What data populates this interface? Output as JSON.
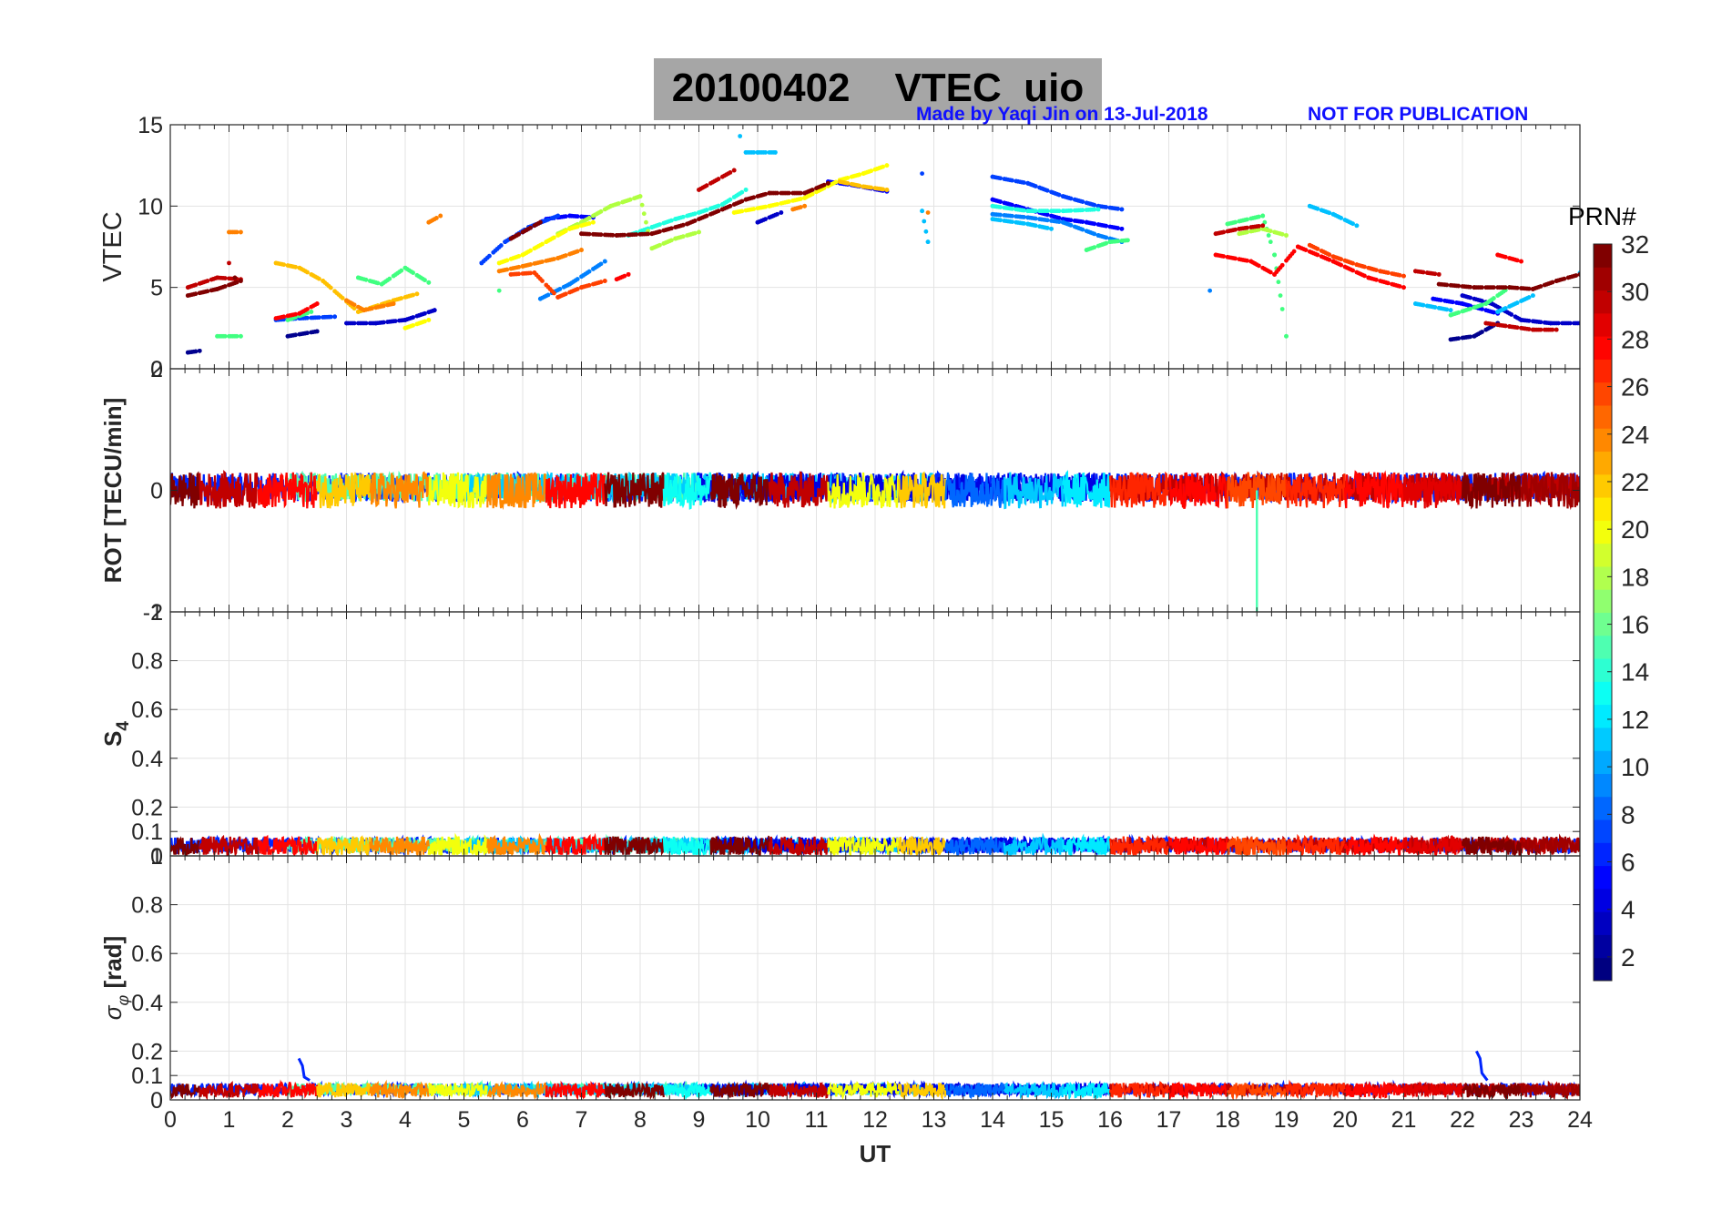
{
  "title": {
    "date": "20100402",
    "quantity": "VTEC",
    "station": "uio"
  },
  "credit": {
    "made_by": "Made by Yaqi Jin on 13-Jul-2018",
    "notice": "NOT FOR PUBLICATION"
  },
  "colorbar": {
    "title": "PRN#",
    "range": [
      1,
      32
    ],
    "ticks": [
      2,
      4,
      6,
      8,
      10,
      12,
      14,
      16,
      18,
      20,
      22,
      24,
      26,
      28,
      30,
      32
    ],
    "colormap": "jet"
  },
  "chart_data": [
    {
      "name": "vtec-panel",
      "type": "scatter",
      "ylabel": "VTEC",
      "xlim": [
        0,
        24
      ],
      "ylim": [
        0,
        15
      ],
      "yticks": [
        0,
        5,
        10,
        15
      ],
      "grid": true,
      "series": [
        {
          "prn": 1,
          "color": "#00008f",
          "points": [
            [
              0.3,
              1.0
            ],
            [
              0.5,
              1.1
            ],
            [
              2.0,
              2.0
            ],
            [
              2.5,
              2.3
            ],
            [
              21.8,
              1.8
            ],
            [
              22.2,
              2.0
            ],
            [
              22.6,
              2.8
            ]
          ]
        },
        {
          "prn": 2,
          "color": "#0000c8",
          "points": [
            [
              3.0,
              2.8
            ],
            [
              3.5,
              2.8
            ],
            [
              4.0,
              3.0
            ],
            [
              4.5,
              3.6
            ],
            [
              10.0,
              9.0
            ],
            [
              10.4,
              9.6
            ],
            [
              22.0,
              4.5
            ],
            [
              22.5,
              4.0
            ],
            [
              23.0,
              3.0
            ],
            [
              23.5,
              2.8
            ],
            [
              24.0,
              2.8
            ]
          ]
        },
        {
          "prn": 4,
          "color": "#0000ff",
          "points": [
            [
              6.0,
              8.4
            ],
            [
              6.4,
              9.2
            ],
            [
              6.8,
              9.4
            ],
            [
              7.2,
              9.3
            ],
            [
              11.2,
              11.5
            ],
            [
              11.6,
              11.3
            ],
            [
              12.2,
              10.9
            ],
            [
              14.0,
              10.4
            ],
            [
              14.6,
              9.8
            ],
            [
              15.2,
              9.2
            ],
            [
              15.6,
              9.0
            ],
            [
              16.2,
              8.6
            ],
            [
              21.5,
              4.3
            ],
            [
              22.0,
              4.0
            ],
            [
              22.6,
              3.4
            ]
          ]
        },
        {
          "prn": 6,
          "color": "#0040ff",
          "points": [
            [
              1.8,
              3.0
            ],
            [
              2.2,
              3.1
            ],
            [
              2.8,
              3.2
            ],
            [
              5.3,
              6.5
            ],
            [
              5.7,
              7.8
            ],
            [
              6.1,
              8.7
            ],
            [
              6.6,
              9.4
            ],
            [
              12.8,
              12.0
            ],
            [
              14.0,
              11.8
            ],
            [
              14.6,
              11.4
            ],
            [
              15.2,
              10.6
            ],
            [
              15.8,
              10.0
            ],
            [
              16.2,
              9.8
            ]
          ]
        },
        {
          "prn": 8,
          "color": "#0080ff",
          "points": [
            [
              6.3,
              4.3
            ],
            [
              6.8,
              5.2
            ],
            [
              7.4,
              6.6
            ],
            [
              17.7,
              4.8
            ],
            [
              14.0,
              9.5
            ],
            [
              14.6,
              9.3
            ],
            [
              15.2,
              9.0
            ],
            [
              15.8,
              8.2
            ],
            [
              16.2,
              7.8
            ]
          ]
        },
        {
          "prn": 11,
          "color": "#00c0ff",
          "points": [
            [
              9.8,
              13.3
            ],
            [
              10.0,
              13.3
            ],
            [
              10.3,
              13.3
            ],
            [
              9.7,
              14.3
            ],
            [
              12.8,
              9.7
            ],
            [
              12.9,
              7.8
            ],
            [
              14.0,
              9.2
            ],
            [
              14.6,
              8.9
            ],
            [
              15.0,
              8.6
            ],
            [
              19.4,
              10.0
            ],
            [
              19.8,
              9.5
            ],
            [
              20.2,
              8.8
            ],
            [
              21.2,
              4.0
            ],
            [
              21.8,
              3.6
            ],
            [
              22.6,
              3.5
            ],
            [
              23.2,
              4.5
            ],
            [
              24.0,
              5.9
            ]
          ]
        },
        {
          "prn": 13,
          "color": "#20ffe0",
          "points": [
            [
              7.8,
              8.2
            ],
            [
              8.2,
              8.7
            ],
            [
              8.6,
              9.2
            ],
            [
              9.0,
              9.6
            ],
            [
              9.4,
              10.1
            ],
            [
              9.8,
              11.0
            ],
            [
              14.0,
              10.0
            ],
            [
              14.6,
              9.7
            ],
            [
              15.2,
              9.7
            ],
            [
              15.8,
              9.8
            ]
          ]
        },
        {
          "prn": 15,
          "color": "#40ff80",
          "points": [
            [
              0.8,
              2.0
            ],
            [
              1.2,
              2.0
            ],
            [
              2.0,
              3.0
            ],
            [
              2.4,
              3.5
            ],
            [
              3.2,
              5.6
            ],
            [
              3.6,
              5.2
            ],
            [
              4.0,
              6.2
            ],
            [
              4.4,
              5.3
            ],
            [
              5.6,
              4.8
            ],
            [
              15.6,
              7.3
            ],
            [
              16.0,
              7.8
            ],
            [
              16.3,
              7.9
            ],
            [
              18.0,
              8.9
            ],
            [
              18.6,
              9.4
            ],
            [
              18.8,
              7.0
            ],
            [
              19.0,
              2.0
            ],
            [
              21.8,
              3.3
            ],
            [
              22.4,
              4.0
            ],
            [
              22.8,
              5.0
            ]
          ]
        },
        {
          "prn": 18,
          "color": "#b0ff40",
          "points": [
            [
              6.6,
              8.3
            ],
            [
              7.0,
              9.0
            ],
            [
              7.5,
              10.0
            ],
            [
              8.0,
              10.6
            ],
            [
              8.2,
              7.4
            ],
            [
              8.6,
              8.0
            ],
            [
              9.0,
              8.4
            ],
            [
              18.2,
              8.3
            ],
            [
              18.6,
              8.6
            ],
            [
              19.0,
              8.2
            ]
          ]
        },
        {
          "prn": 20,
          "color": "#ffff00",
          "points": [
            [
              5.6,
              6.5
            ],
            [
              6.0,
              7.0
            ],
            [
              6.4,
              7.8
            ],
            [
              6.8,
              8.6
            ],
            [
              7.2,
              9.0
            ],
            [
              9.6,
              9.6
            ],
            [
              10.2,
              10.0
            ],
            [
              10.8,
              10.5
            ],
            [
              11.4,
              11.6
            ],
            [
              11.8,
              12.0
            ],
            [
              12.2,
              12.5
            ],
            [
              4.0,
              2.5
            ],
            [
              4.4,
              3.0
            ]
          ]
        },
        {
          "prn": 22,
          "color": "#ffc000",
          "points": [
            [
              1.8,
              6.5
            ],
            [
              2.2,
              6.2
            ],
            [
              2.6,
              5.4
            ],
            [
              3.2,
              3.5
            ],
            [
              3.8,
              4.2
            ],
            [
              4.2,
              4.6
            ],
            [
              11.4,
              11.5
            ],
            [
              11.8,
              11.2
            ],
            [
              12.2,
              11.0
            ]
          ]
        },
        {
          "prn": 24,
          "color": "#ff8000",
          "points": [
            [
              1.0,
              8.4
            ],
            [
              1.2,
              8.4
            ],
            [
              4.4,
              9.0
            ],
            [
              4.6,
              9.4
            ],
            [
              5.6,
              6.0
            ],
            [
              6.0,
              6.3
            ],
            [
              6.6,
              6.8
            ],
            [
              7.0,
              7.3
            ],
            [
              3.0,
              4.2
            ],
            [
              3.3,
              3.6
            ],
            [
              3.8,
              4.0
            ],
            [
              12.9,
              9.6
            ],
            [
              10.6,
              9.8
            ],
            [
              10.8,
              10.0
            ]
          ]
        },
        {
          "prn": 26,
          "color": "#ff4000",
          "points": [
            [
              5.8,
              5.8
            ],
            [
              6.2,
              5.9
            ],
            [
              6.6,
              4.4
            ],
            [
              7.0,
              5.0
            ],
            [
              7.4,
              5.4
            ],
            [
              19.4,
              7.6
            ],
            [
              19.8,
              6.9
            ],
            [
              20.2,
              6.4
            ],
            [
              20.6,
              6.0
            ],
            [
              21.0,
              5.7
            ]
          ]
        },
        {
          "prn": 28,
          "color": "#ff0000",
          "points": [
            [
              1.8,
              3.1
            ],
            [
              2.2,
              3.4
            ],
            [
              2.5,
              4.0
            ],
            [
              7.6,
              5.5
            ],
            [
              7.8,
              5.8
            ],
            [
              17.8,
              7.0
            ],
            [
              18.4,
              6.6
            ],
            [
              18.8,
              5.8
            ],
            [
              19.2,
              7.5
            ],
            [
              19.8,
              6.6
            ],
            [
              20.4,
              5.6
            ],
            [
              21.0,
              5.0
            ],
            [
              22.6,
              7.0
            ],
            [
              23.0,
              6.6
            ]
          ]
        },
        {
          "prn": 30,
          "color": "#c00000",
          "points": [
            [
              0.3,
              5.0
            ],
            [
              0.8,
              5.6
            ],
            [
              1.2,
              5.5
            ],
            [
              1.0,
              6.5
            ],
            [
              9.0,
              11.0
            ],
            [
              9.6,
              12.2
            ],
            [
              17.8,
              8.3
            ],
            [
              18.2,
              8.6
            ],
            [
              18.6,
              8.8
            ],
            [
              21.2,
              6.0
            ],
            [
              21.6,
              5.8
            ],
            [
              22.4,
              2.8
            ],
            [
              22.8,
              2.6
            ],
            [
              23.2,
              2.4
            ],
            [
              23.6,
              2.4
            ]
          ]
        },
        {
          "prn": 32,
          "color": "#800000",
          "points": [
            [
              0.3,
              4.5
            ],
            [
              0.8,
              4.9
            ],
            [
              1.2,
              5.4
            ],
            [
              1.1,
              5.6
            ],
            [
              5.8,
              8.0
            ],
            [
              6.3,
              9.0
            ],
            [
              7.0,
              8.3
            ],
            [
              7.6,
              8.2
            ],
            [
              8.2,
              8.3
            ],
            [
              8.8,
              8.9
            ],
            [
              9.4,
              9.8
            ],
            [
              9.8,
              10.4
            ],
            [
              10.2,
              10.8
            ],
            [
              10.8,
              10.8
            ],
            [
              11.2,
              11.4
            ],
            [
              21.6,
              5.2
            ],
            [
              22.2,
              5.0
            ],
            [
              22.8,
              5.0
            ],
            [
              23.2,
              4.9
            ],
            [
              23.6,
              5.4
            ],
            [
              24.0,
              5.8
            ]
          ]
        }
      ]
    },
    {
      "name": "rot-panel",
      "type": "line",
      "ylabel": "ROT [TECU/min]",
      "xlim": [
        0,
        24
      ],
      "ylim": [
        -2,
        2
      ],
      "yticks": [
        -2,
        0,
        2
      ],
      "grid": true,
      "band_center": 0,
      "band_amplitude": 0.3,
      "spike": {
        "x": 18.5,
        "y": -2.0,
        "prn": 15
      }
    },
    {
      "name": "s4-panel",
      "type": "line",
      "ylabel": "S4",
      "xlim": [
        0,
        24
      ],
      "ylim": [
        0,
        1
      ],
      "yticks": [
        0,
        0.1,
        0.2,
        0.4,
        0.6,
        0.8,
        1
      ],
      "grid": true,
      "baseline": 0.04,
      "band_amplitude": 0.04
    },
    {
      "name": "sigma-phi-panel",
      "type": "line",
      "ylabel": "σ_φ [rad]",
      "ylabel_parts": {
        "symbol": "σ",
        "subscript": "φ",
        "unit": "[rad]"
      },
      "xlabel": "UT",
      "xlim": [
        0,
        24
      ],
      "ylim": [
        0,
        1
      ],
      "yticks": [
        0,
        0.1,
        0.2,
        0.4,
        0.6,
        0.8,
        1
      ],
      "xticks": [
        0,
        1,
        2,
        3,
        4,
        5,
        6,
        7,
        8,
        9,
        10,
        11,
        12,
        13,
        14,
        15,
        16,
        17,
        18,
        19,
        20,
        21,
        22,
        23,
        24
      ],
      "grid": true,
      "baseline": 0.04,
      "band_amplitude": 0.03,
      "spikes": [
        {
          "x": 2.25,
          "y": 0.17,
          "prn": 6
        },
        {
          "x": 22.3,
          "y": 0.2,
          "prn": 6
        }
      ]
    }
  ]
}
